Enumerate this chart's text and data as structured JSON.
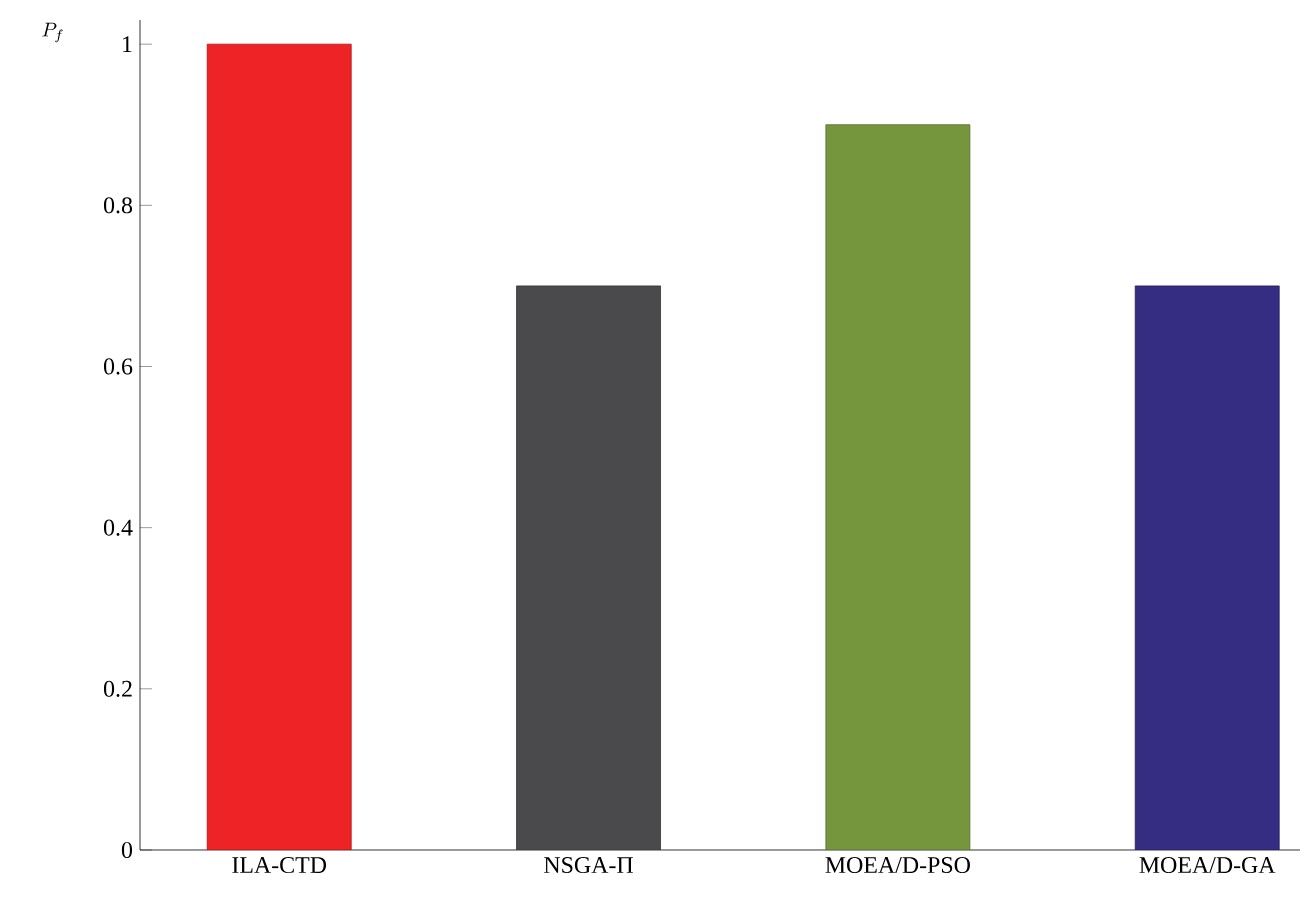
{
  "chart_data": {
    "type": "bar",
    "ylabel": "P_f",
    "categories": [
      "ILA-CTD",
      "NSGA-Π",
      "MOEA/D-PSO",
      "MOEA/D-GA"
    ],
    "values": [
      1,
      0.7,
      0.9,
      0.7
    ],
    "colors": [
      "#ee2326",
      "#4a4a4c",
      "#76963e",
      "#352d81"
    ],
    "ylim": [
      0,
      1.03
    ],
    "yticks": [
      0,
      0.2,
      0.4,
      0.6,
      0.8,
      1
    ]
  }
}
